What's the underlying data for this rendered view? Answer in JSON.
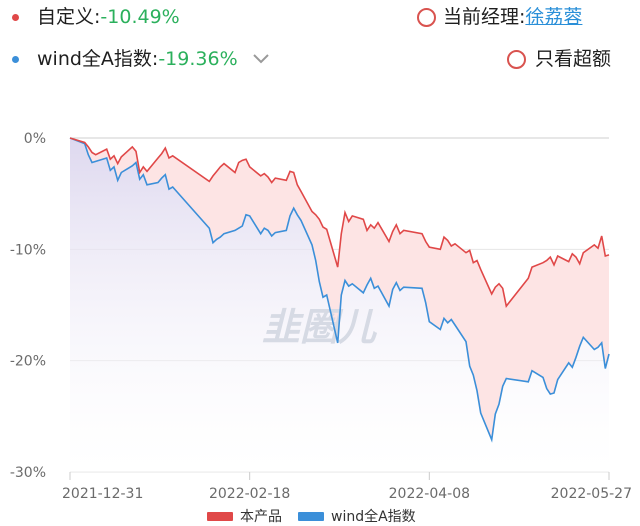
{
  "header": {
    "series1": {
      "label": "自定义:",
      "value": "-10.49%",
      "dot_color": "#e04848"
    },
    "series2": {
      "label": "wind全A指数:",
      "value": "-19.36%",
      "dot_color": "#3b8fd9"
    },
    "manager": {
      "label": "当前经理:",
      "name": "徐荔蓉"
    },
    "excess_toggle": {
      "label": "只看超额"
    }
  },
  "watermark": "韭圈儿",
  "chart_data": {
    "type": "line",
    "y_tick_labels": [
      "0%",
      "-10%",
      "-20%",
      "-30%"
    ],
    "y_ticks": [
      0,
      -10,
      -20,
      -30
    ],
    "ylim": [
      -30,
      0
    ],
    "x_tick_labels": [
      "2021-12-31",
      "2022-02-18",
      "2022-04-08",
      "2022-05-27"
    ],
    "x_ticks": [
      "2021-12-31",
      "2022-02-18",
      "2022-04-08",
      "2022-05-27"
    ],
    "xlim": [
      "2021-12-31",
      "2022-05-27"
    ],
    "colors": {
      "product": "#e04848",
      "index": "#3b8fd9",
      "excess_fill": "#fde4e4",
      "index_fill": "#e4e4f4"
    },
    "legend_position": "bottom-center",
    "series": [
      {
        "name": "本产品",
        "x": [
          "2021-12-31",
          "2022-01-04",
          "2022-01-05",
          "2022-01-06",
          "2022-01-07",
          "2022-01-10",
          "2022-01-11",
          "2022-01-12",
          "2022-01-13",
          "2022-01-14",
          "2022-01-17",
          "2022-01-18",
          "2022-01-19",
          "2022-01-20",
          "2022-01-21",
          "2022-01-24",
          "2022-01-25",
          "2022-01-26",
          "2022-01-27",
          "2022-01-28",
          "2022-02-07",
          "2022-02-08",
          "2022-02-09",
          "2022-02-10",
          "2022-02-11",
          "2022-02-14",
          "2022-02-15",
          "2022-02-16",
          "2022-02-17",
          "2022-02-18",
          "2022-02-21",
          "2022-02-22",
          "2022-02-23",
          "2022-02-24",
          "2022-02-25",
          "2022-02-28",
          "2022-03-01",
          "2022-03-02",
          "2022-03-03",
          "2022-03-04",
          "2022-03-07",
          "2022-03-08",
          "2022-03-09",
          "2022-03-10",
          "2022-03-11",
          "2022-03-14",
          "2022-03-15",
          "2022-03-16",
          "2022-03-17",
          "2022-03-18",
          "2022-03-21",
          "2022-03-22",
          "2022-03-23",
          "2022-03-24",
          "2022-03-25",
          "2022-03-28",
          "2022-03-29",
          "2022-03-30",
          "2022-03-31",
          "2022-04-01",
          "2022-04-06",
          "2022-04-07",
          "2022-04-08",
          "2022-04-11",
          "2022-04-12",
          "2022-04-13",
          "2022-04-14",
          "2022-04-15",
          "2022-04-18",
          "2022-04-19",
          "2022-04-20",
          "2022-04-21",
          "2022-04-22",
          "2022-04-25",
          "2022-04-26",
          "2022-04-27",
          "2022-04-28",
          "2022-04-29",
          "2022-05-05",
          "2022-05-06",
          "2022-05-09",
          "2022-05-10",
          "2022-05-11",
          "2022-05-12",
          "2022-05-13",
          "2022-05-16",
          "2022-05-17",
          "2022-05-18",
          "2022-05-19",
          "2022-05-20",
          "2022-05-23",
          "2022-05-24",
          "2022-05-25",
          "2022-05-26",
          "2022-05-27"
        ],
        "values": [
          0.0,
          -0.4,
          -0.8,
          -1.3,
          -1.5,
          -1.0,
          -1.9,
          -1.6,
          -2.3,
          -1.7,
          -0.8,
          -1.2,
          -3.1,
          -2.6,
          -3.0,
          -1.8,
          -1.4,
          -0.9,
          -1.8,
          -1.6,
          -3.9,
          -3.4,
          -3.0,
          -2.6,
          -2.3,
          -3.1,
          -2.2,
          -2.0,
          -1.9,
          -2.6,
          -3.4,
          -3.2,
          -3.5,
          -4.0,
          -3.6,
          -3.8,
          -3.0,
          -3.1,
          -4.2,
          -4.8,
          -6.6,
          -6.9,
          -7.3,
          -8.0,
          -8.2,
          -11.6,
          -8.6,
          -6.7,
          -7.5,
          -7.0,
          -7.3,
          -8.3,
          -7.8,
          -8.1,
          -7.6,
          -9.3,
          -8.4,
          -7.8,
          -8.6,
          -8.3,
          -8.6,
          -9.3,
          -9.8,
          -10.0,
          -8.9,
          -9.2,
          -9.7,
          -9.5,
          -10.3,
          -10.1,
          -11.2,
          -11.0,
          -11.8,
          -14.0,
          -13.4,
          -13.1,
          -13.5,
          -15.1,
          -12.6,
          -11.6,
          -11.2,
          -11.0,
          -10.7,
          -11.4,
          -10.6,
          -11.1,
          -10.4,
          -10.7,
          -11.3,
          -10.3,
          -9.6,
          -9.9,
          -8.8,
          -10.6,
          -10.5
        ]
      },
      {
        "name": "wind全A指数",
        "x": [
          "2021-12-31",
          "2022-01-04",
          "2022-01-05",
          "2022-01-06",
          "2022-01-07",
          "2022-01-10",
          "2022-01-11",
          "2022-01-12",
          "2022-01-13",
          "2022-01-14",
          "2022-01-17",
          "2022-01-18",
          "2022-01-19",
          "2022-01-20",
          "2022-01-21",
          "2022-01-24",
          "2022-01-25",
          "2022-01-26",
          "2022-01-27",
          "2022-01-28",
          "2022-02-07",
          "2022-02-08",
          "2022-02-09",
          "2022-02-10",
          "2022-02-11",
          "2022-02-14",
          "2022-02-15",
          "2022-02-16",
          "2022-02-17",
          "2022-02-18",
          "2022-02-21",
          "2022-02-22",
          "2022-02-23",
          "2022-02-24",
          "2022-02-25",
          "2022-02-28",
          "2022-03-01",
          "2022-03-02",
          "2022-03-03",
          "2022-03-04",
          "2022-03-07",
          "2022-03-08",
          "2022-03-09",
          "2022-03-10",
          "2022-03-11",
          "2022-03-14",
          "2022-03-15",
          "2022-03-16",
          "2022-03-17",
          "2022-03-18",
          "2022-03-21",
          "2022-03-22",
          "2022-03-23",
          "2022-03-24",
          "2022-03-25",
          "2022-03-28",
          "2022-03-29",
          "2022-03-30",
          "2022-03-31",
          "2022-04-01",
          "2022-04-06",
          "2022-04-07",
          "2022-04-08",
          "2022-04-11",
          "2022-04-12",
          "2022-04-13",
          "2022-04-14",
          "2022-04-15",
          "2022-04-18",
          "2022-04-19",
          "2022-04-20",
          "2022-04-21",
          "2022-04-22",
          "2022-04-25",
          "2022-04-26",
          "2022-04-27",
          "2022-04-28",
          "2022-04-29",
          "2022-05-05",
          "2022-05-06",
          "2022-05-09",
          "2022-05-10",
          "2022-05-11",
          "2022-05-12",
          "2022-05-13",
          "2022-05-16",
          "2022-05-17",
          "2022-05-18",
          "2022-05-19",
          "2022-05-20",
          "2022-05-23",
          "2022-05-24",
          "2022-05-25",
          "2022-05-26",
          "2022-05-27"
        ],
        "values": [
          0.0,
          -0.5,
          -1.5,
          -2.2,
          -2.1,
          -1.8,
          -2.9,
          -2.6,
          -3.8,
          -3.1,
          -2.5,
          -2.2,
          -3.7,
          -3.3,
          -4.2,
          -4.0,
          -3.6,
          -3.3,
          -4.6,
          -4.4,
          -8.1,
          -9.4,
          -9.1,
          -8.9,
          -8.6,
          -8.3,
          -8.1,
          -7.9,
          -6.9,
          -7.0,
          -8.6,
          -8.1,
          -8.3,
          -8.8,
          -8.5,
          -8.3,
          -7.0,
          -6.3,
          -6.9,
          -7.4,
          -9.6,
          -11.0,
          -12.9,
          -14.3,
          -14.1,
          -18.4,
          -14.1,
          -12.8,
          -13.3,
          -13.1,
          -13.9,
          -13.2,
          -12.6,
          -13.5,
          -13.3,
          -15.1,
          -13.6,
          -13.0,
          -13.7,
          -13.4,
          -13.5,
          -14.8,
          -16.5,
          -17.2,
          -16.2,
          -16.6,
          -16.3,
          -16.8,
          -18.3,
          -20.5,
          -21.3,
          -22.7,
          -24.7,
          -27.1,
          -24.8,
          -23.9,
          -22.3,
          -21.6,
          -21.9,
          -20.9,
          -21.5,
          -22.5,
          -23.0,
          -22.9,
          -21.7,
          -20.2,
          -20.6,
          -19.7,
          -18.7,
          -17.9,
          -19.0,
          -18.8,
          -18.4,
          -20.7,
          -19.4
        ]
      }
    ]
  }
}
